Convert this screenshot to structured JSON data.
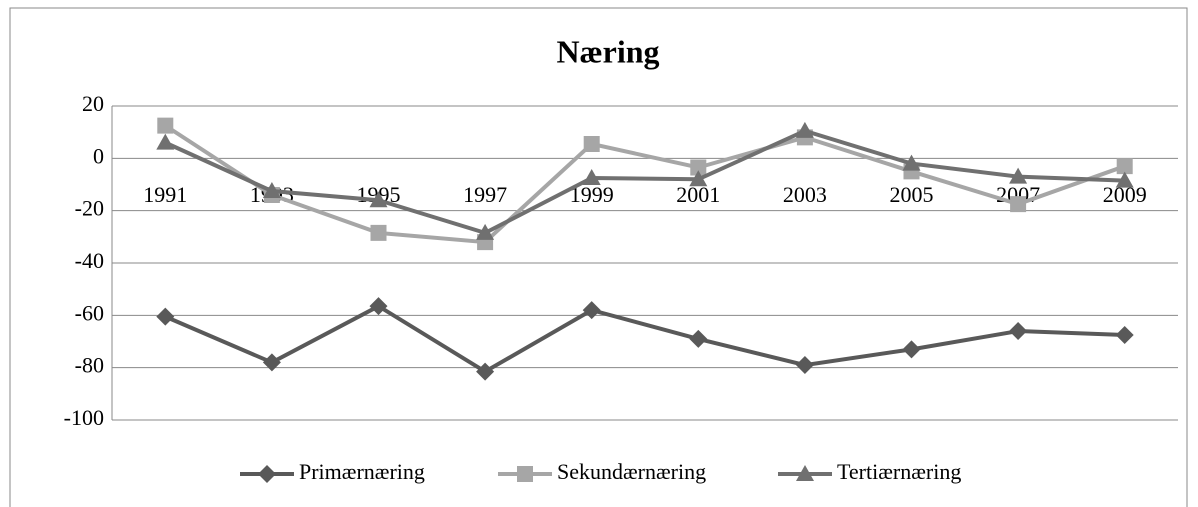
{
  "chart_data": {
    "type": "line",
    "title": "Næring",
    "categories": [
      "1991",
      "1993",
      "1995",
      "1997",
      "1999",
      "2001",
      "2003",
      "2005",
      "2007",
      "2009"
    ],
    "series": [
      {
        "name": "Primærnæring",
        "color": "#595959",
        "marker": "diamond",
        "values": [
          -60.5,
          -78,
          -56.5,
          -81.5,
          -58,
          -69,
          -79,
          -73,
          -66,
          -67.5
        ]
      },
      {
        "name": "Sekundærnæring",
        "color": "#a6a6a6",
        "marker": "square",
        "values": [
          12.5,
          -14,
          -28.5,
          -32,
          5.5,
          -3.5,
          8,
          -5,
          -17.5,
          -3
        ]
      },
      {
        "name": "Tertiærnæring",
        "color": "#707070",
        "marker": "triangle",
        "values": [
          6,
          -12.5,
          -16,
          -28.5,
          -7.5,
          -8,
          10.5,
          -2,
          -7,
          -8.5
        ]
      }
    ],
    "ylim": [
      -100,
      20
    ],
    "yticks": [
      -100,
      -80,
      -60,
      -40,
      -20,
      0,
      20
    ],
    "grid": true,
    "legend": "bottom"
  }
}
